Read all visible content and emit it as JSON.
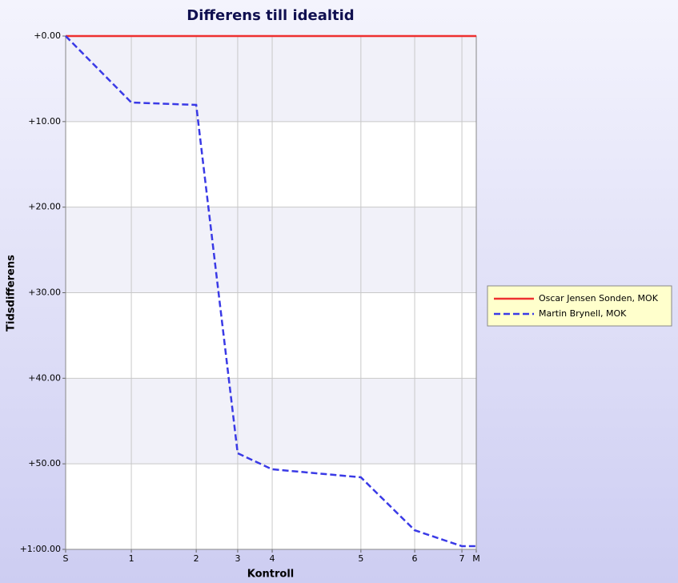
{
  "chart_data": {
    "type": "line",
    "title": "Differens till idealtid",
    "xlabel": "Kontroll",
    "ylabel": "Tidsdifferens",
    "x": [
      0,
      16.0,
      31.8,
      41.9,
      50.3,
      71.9,
      85.0,
      96.5,
      100
    ],
    "xlim": [
      0,
      100
    ],
    "xticks": [
      {
        "value": 0,
        "label": "S"
      },
      {
        "value": 16.0,
        "label": "1"
      },
      {
        "value": 31.8,
        "label": "2"
      },
      {
        "value": 41.9,
        "label": "3"
      },
      {
        "value": 50.3,
        "label": "4"
      },
      {
        "value": 71.9,
        "label": "5"
      },
      {
        "value": 85.0,
        "label": "6"
      },
      {
        "value": 96.5,
        "label": "7"
      },
      {
        "value": 100,
        "label": "M"
      }
    ],
    "ylim": [
      0,
      60
    ],
    "y_inverted": true,
    "yticks": [
      {
        "value": 0,
        "label": "+0.00"
      },
      {
        "value": 10,
        "label": "+10.00"
      },
      {
        "value": 20,
        "label": "+20.00"
      },
      {
        "value": 30,
        "label": "+30.00"
      },
      {
        "value": 40,
        "label": "+40.00"
      },
      {
        "value": 50,
        "label": "+50.00"
      },
      {
        "value": 60,
        "label": "+1:00.00"
      }
    ],
    "grid": true,
    "legend": "right",
    "series": [
      {
        "name": "Oscar Jensen Sonden, MOK",
        "color": "#ee3030",
        "dashed": false,
        "values": [
          0,
          0,
          0,
          0,
          0,
          0,
          0,
          0,
          0
        ]
      },
      {
        "name": "Martin Brynell, MOK",
        "color": "#3a3ae6",
        "dashed": true,
        "values": [
          0,
          7.77,
          8.05,
          48.77,
          50.64,
          51.58,
          57.76,
          59.63,
          59.63
        ]
      }
    ]
  }
}
